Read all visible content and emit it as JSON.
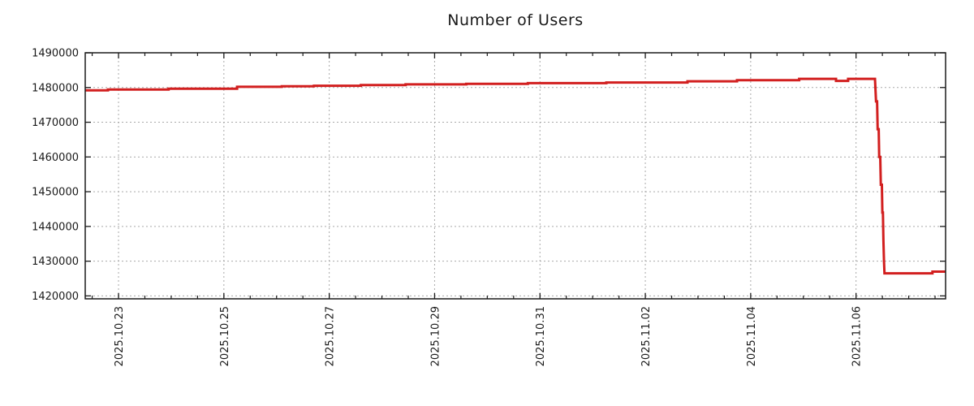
{
  "chart_data": {
    "type": "line",
    "title": "Number of Users",
    "xlabel": "",
    "ylabel": "",
    "legend": "none",
    "grid": {
      "style": "dashed",
      "major_x": true,
      "major_y": true
    },
    "x_axis": {
      "unit": "days relative to 2025-10-23 00:00",
      "range": [
        -0.632,
        15.7
      ],
      "major_ticks": [
        {
          "t": 0,
          "label": "2025.10.23"
        },
        {
          "t": 2,
          "label": "2025.10.25"
        },
        {
          "t": 4,
          "label": "2025.10.27"
        },
        {
          "t": 6,
          "label": "2025.10.29"
        },
        {
          "t": 8,
          "label": "2025.10.31"
        },
        {
          "t": 10,
          "label": "2025.11.02"
        },
        {
          "t": 12,
          "label": "2025.11.04"
        },
        {
          "t": 14,
          "label": "2025.11.06"
        }
      ],
      "minor_tick_step_days": 0.5
    },
    "y_axis": {
      "range": [
        1419160,
        1490000
      ],
      "ticks": [
        1420000,
        1430000,
        1440000,
        1450000,
        1460000,
        1470000,
        1480000,
        1490000
      ]
    },
    "series": [
      {
        "name": "number-of-users",
        "color": "#d21f1f",
        "line_width": 3,
        "points": [
          [
            -0.63,
            1479200
          ],
          [
            -0.2,
            1479200
          ],
          [
            -0.2,
            1479400
          ],
          [
            0.95,
            1479400
          ],
          [
            0.95,
            1479650
          ],
          [
            2.25,
            1479650
          ],
          [
            2.25,
            1480200
          ],
          [
            3.1,
            1480200
          ],
          [
            3.1,
            1480350
          ],
          [
            3.71,
            1480350
          ],
          [
            3.71,
            1480500
          ],
          [
            4.6,
            1480500
          ],
          [
            4.6,
            1480700
          ],
          [
            5.45,
            1480700
          ],
          [
            5.45,
            1480900
          ],
          [
            6.6,
            1480900
          ],
          [
            6.6,
            1481050
          ],
          [
            7.77,
            1481050
          ],
          [
            7.77,
            1481250
          ],
          [
            9.26,
            1481250
          ],
          [
            9.26,
            1481450
          ],
          [
            10.8,
            1481450
          ],
          [
            10.8,
            1481800
          ],
          [
            11.74,
            1481800
          ],
          [
            11.74,
            1482100
          ],
          [
            12.92,
            1482100
          ],
          [
            12.92,
            1482500
          ],
          [
            13.62,
            1482500
          ],
          [
            13.62,
            1481900
          ],
          [
            13.85,
            1481900
          ],
          [
            13.85,
            1482500
          ],
          [
            14.36,
            1482500
          ],
          [
            14.38,
            1476000
          ],
          [
            14.4,
            1476000
          ],
          [
            14.41,
            1468000
          ],
          [
            14.43,
            1468000
          ],
          [
            14.44,
            1460000
          ],
          [
            14.46,
            1460000
          ],
          [
            14.47,
            1452000
          ],
          [
            14.49,
            1452000
          ],
          [
            14.5,
            1444000
          ],
          [
            14.51,
            1444000
          ],
          [
            14.52,
            1436000
          ],
          [
            14.53,
            1430000
          ],
          [
            14.54,
            1426500
          ],
          [
            15.45,
            1426500
          ],
          [
            15.45,
            1427000
          ],
          [
            15.7,
            1427000
          ]
        ]
      }
    ],
    "colors": {
      "line": "#d21f1f",
      "grid": "#a9a9a9",
      "axis": "#1a1a1a",
      "text": "#1a1a1a",
      "background": "#ffffff"
    }
  }
}
